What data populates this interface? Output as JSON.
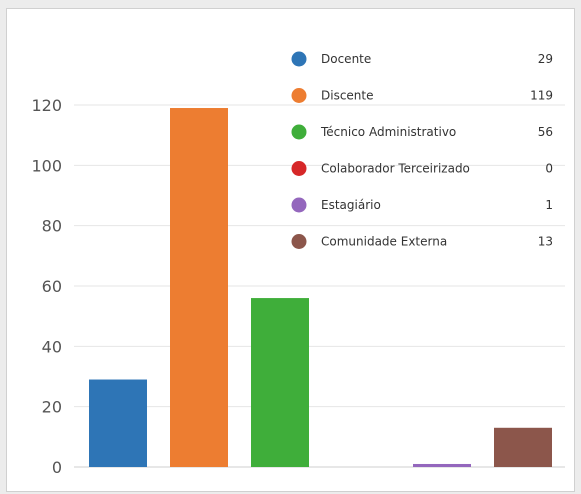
{
  "chart_data": {
    "type": "bar",
    "title": "",
    "xlabel": "",
    "ylabel": "",
    "ylim": [
      0,
      120
    ],
    "yticks": [
      0,
      20,
      40,
      60,
      80,
      100,
      120
    ],
    "grid": true,
    "legend": {
      "placement": "top-right",
      "show_values": true
    },
    "categories": [
      "Docente",
      "Discente",
      "Técnico Administrativo",
      "Colaborador Terceirizado",
      "Estagiário",
      "Comunidade Externa"
    ],
    "values": [
      29,
      119,
      56,
      0,
      1,
      13
    ],
    "colors": [
      "#2E75B6",
      "#ED7D31",
      "#3FAE3A",
      "#D62728",
      "#9467BD",
      "#8C564B"
    ]
  }
}
